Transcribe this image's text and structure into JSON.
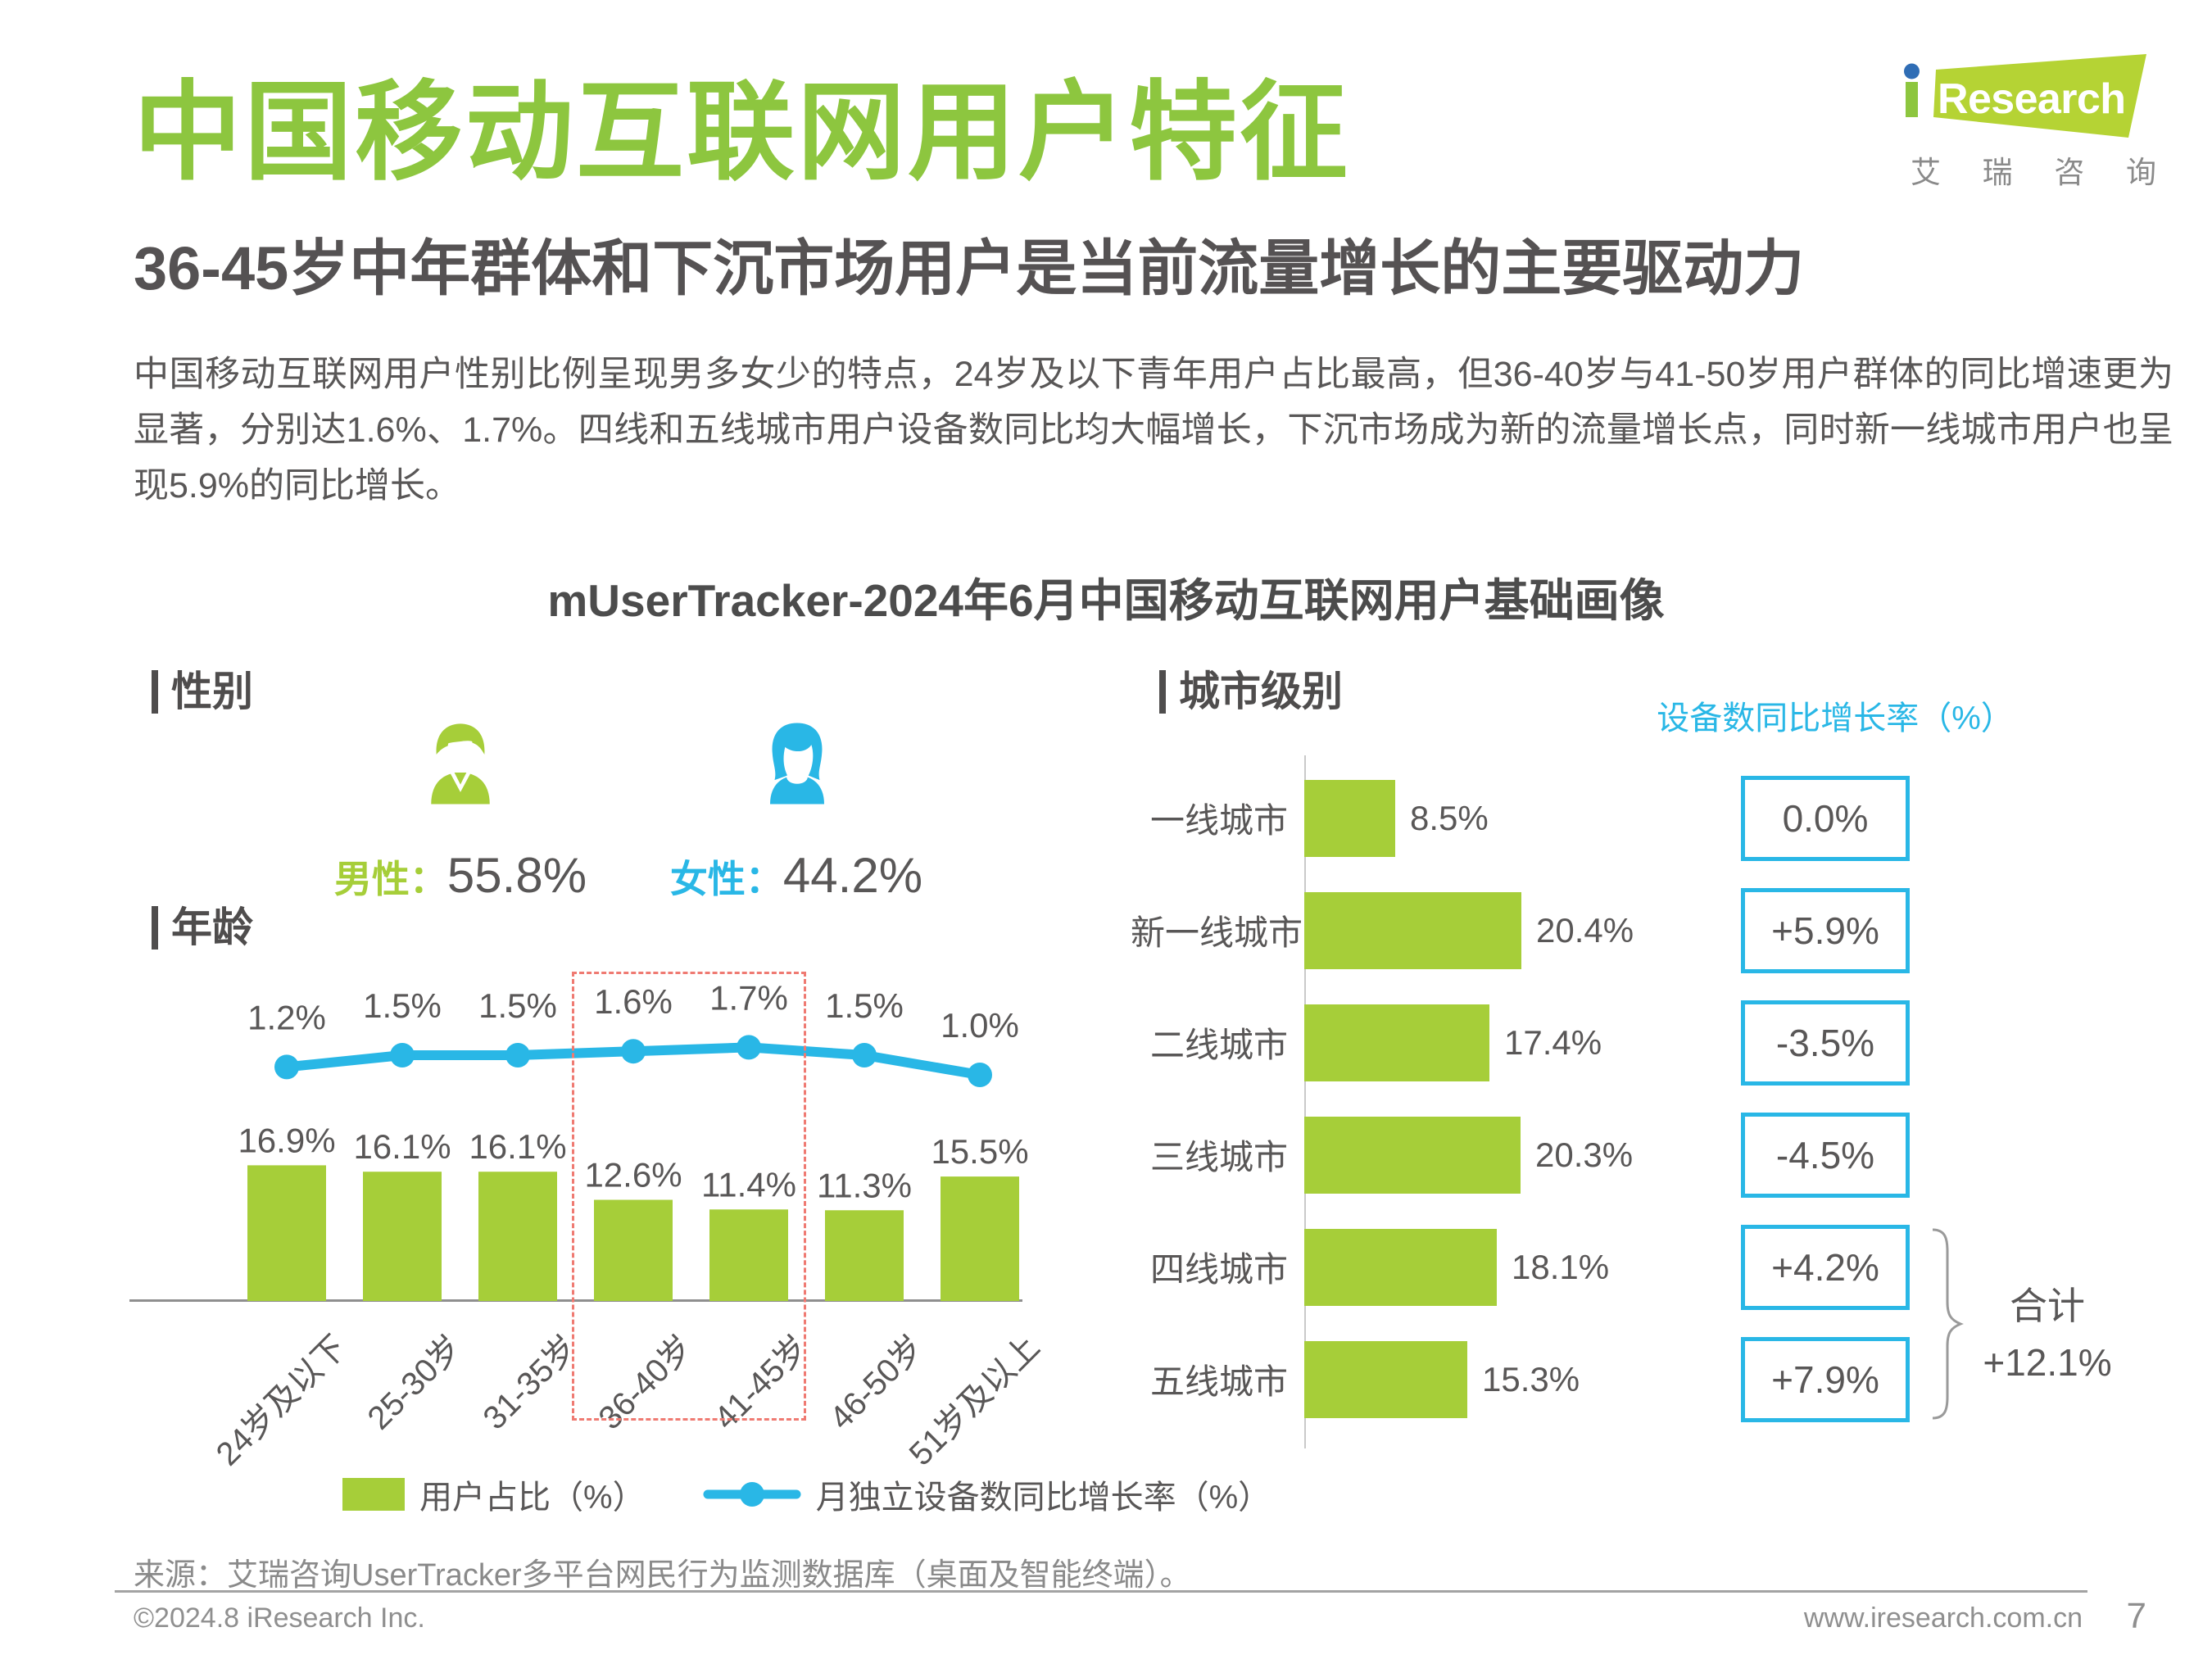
{
  "page": {
    "title": "中国移动互联网用户特征",
    "subtitle": "36-45岁中年群体和下沉市场用户是当前流量增长的主要驱动力",
    "body_text": "中国移动互联网用户性别比例呈现男多女少的特点，24岁及以下青年用户占比最高，但36-40岁与41-50岁用户群体的同比增速更为显著，分别达1.6%、1.7%。四线和五线城市用户设备数同比均大幅增长，下沉市场成为新的流量增长点，同时新一线城市用户也呈现5.9%的同比增长。",
    "chart_title": "mUserTracker-2024年6月中国移动互联网用户基础画像",
    "source": "来源：艾瑞咨询UserTracker多平台网民行为监测数据库（桌面及智能终端）。",
    "footer_left": "©2024.8 iResearch Inc.",
    "footer_right": "www.iresearch.com.cn",
    "page_number": "7"
  },
  "logo": {
    "research": "Research",
    "cn_chars": [
      "艾",
      "瑞",
      "咨",
      "询"
    ]
  },
  "colors": {
    "green": "#a6ce39",
    "title_green": "#8dc63f",
    "cyan": "#29b7e6",
    "dark": "#595757",
    "salmon": "#ef7a72",
    "logo_green": "#b5d334",
    "logo_blue": "#2f6db5"
  },
  "sections": {
    "gender_label": "性别",
    "age_label": "年龄",
    "city_label": "城市级别"
  },
  "gender": {
    "male_label": "男性：",
    "male_value": "55.8%",
    "female_label": "女性：",
    "female_value": "44.2%"
  },
  "legend": {
    "bar_label": "用户占比（%）",
    "line_label": "月独立设备数同比增长率（%）"
  },
  "chart_data": [
    {
      "type": "bar",
      "title": "年龄",
      "categories": [
        "24岁及以下",
        "25-30岁",
        "31-35岁",
        "36-40岁",
        "41-45岁",
        "46-50岁",
        "51岁及以上"
      ],
      "series": [
        {
          "name": "用户占比（%）",
          "type": "bar",
          "values": [
            16.9,
            16.1,
            16.1,
            12.6,
            11.4,
            11.3,
            15.5
          ]
        },
        {
          "name": "月独立设备数同比增长率（%）",
          "type": "line",
          "values": [
            1.2,
            1.5,
            1.5,
            1.6,
            1.7,
            1.5,
            1.0
          ]
        }
      ],
      "highlight_categories": [
        "36-40岁",
        "41-45岁"
      ],
      "grid": false,
      "legend_position": "bottom"
    },
    {
      "type": "bar",
      "orientation": "horizontal",
      "title": "城市级别",
      "categories": [
        "一线城市",
        "新一线城市",
        "二线城市",
        "三线城市",
        "四线城市",
        "五线城市"
      ],
      "values": [
        8.5,
        20.4,
        17.4,
        20.3,
        18.1,
        15.3
      ],
      "value_labels": [
        "8.5%",
        "20.4%",
        "17.4%",
        "20.3%",
        "18.1%",
        "15.3%"
      ],
      "growth_header": "设备数同比增长率（%）",
      "growth_labels": [
        "0.0%",
        "+5.9%",
        "-3.5%",
        "-4.5%",
        "+4.2%",
        "+7.9%"
      ],
      "total_label": "合计",
      "total_value": "+12.1%"
    }
  ]
}
